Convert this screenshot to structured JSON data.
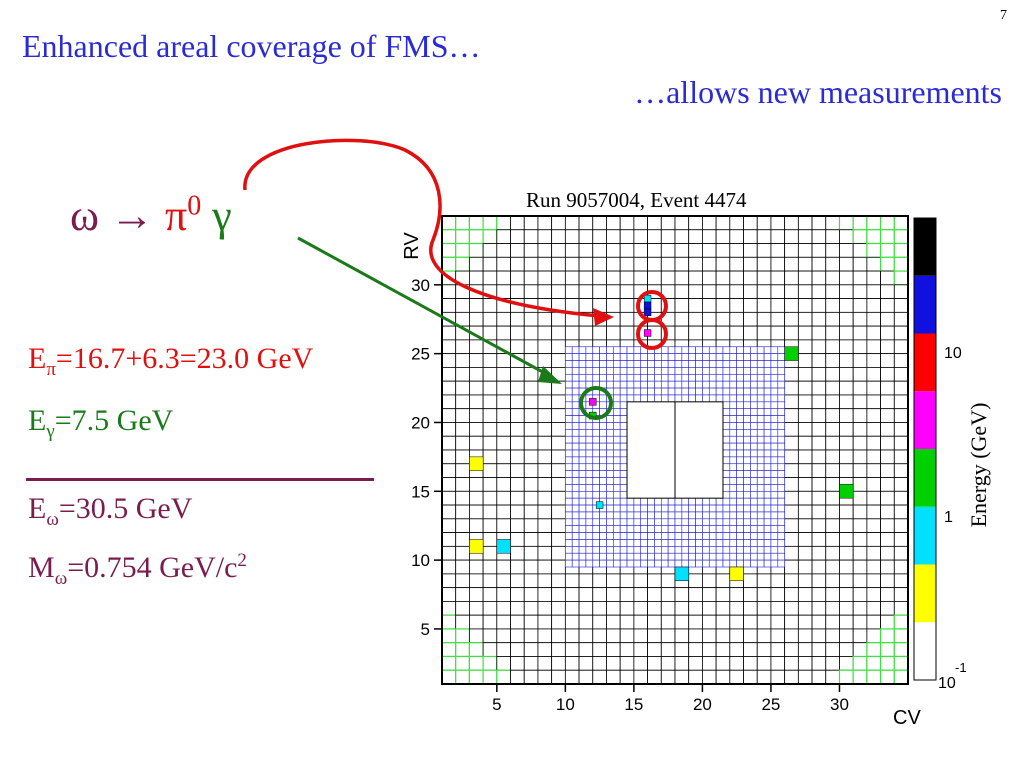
{
  "slide": {
    "page_number": "7",
    "title_line1": "Enhanced areal coverage of FMS…",
    "title_line2": "…allows new measurements"
  },
  "reaction": {
    "omega": "ω",
    "arrow": "→",
    "pi": "π",
    "pi_sup": "0",
    "gamma": "γ"
  },
  "energies": {
    "epi_E": "E",
    "epi_sub": "π",
    "epi_val": "=16.7+6.3=23.0 GeV",
    "eg_E": "E",
    "eg_sub": "γ",
    "eg_val": "=7.5 GeV",
    "eo_E": "E",
    "eo_sub": "ω",
    "eo_val": "=30.5 GeV",
    "mo_M": "M",
    "mo_sub": "ω",
    "mo_val": "=0.754 GeV/c",
    "mo_sup": "2"
  },
  "plot": {
    "title": "Run 9057004, Event 4474",
    "y_axis_label": "RV",
    "x_axis_label": "CV",
    "x_ticks": [
      "5",
      "10",
      "15",
      "20",
      "25",
      "30"
    ],
    "y_ticks": [
      "5",
      "10",
      "15",
      "20",
      "25",
      "30"
    ],
    "colorbar_label": "Energy (GeV)",
    "colorbar_tick_10_base": "10",
    "colorbar_tick_1": "1",
    "colorbar_tick_low_base": "10",
    "colorbar_tick_low_exp": "-1",
    "colors": {
      "large_cell_grid": "#000000",
      "small_cell_grid": "#2020d0",
      "edge_cells": "#40e040",
      "black": "#000000",
      "blue": "#1010e0",
      "red": "#ff0000",
      "magenta": "#ff00ff",
      "green": "#00d000",
      "cyan": "#00e0ff",
      "yellow": "#ffff00",
      "white": "#ffffff"
    },
    "hits": [
      {
        "cv": 3.5,
        "rv": 17,
        "color": "yellow",
        "size": "large"
      },
      {
        "cv": 3.5,
        "rv": 11,
        "color": "yellow",
        "size": "large"
      },
      {
        "cv": 5.5,
        "rv": 11,
        "color": "cyan",
        "size": "large"
      },
      {
        "cv": 18.5,
        "rv": 9,
        "color": "cyan",
        "size": "large"
      },
      {
        "cv": 22.5,
        "rv": 9,
        "color": "yellow",
        "size": "large"
      },
      {
        "cv": 26.5,
        "rv": 25,
        "color": "green",
        "size": "large"
      },
      {
        "cv": 30.5,
        "rv": 15,
        "color": "green",
        "size": "large"
      },
      {
        "cv": 16,
        "rv": 29,
        "color": "cyan",
        "size": "small"
      },
      {
        "cv": 16,
        "rv": 28.5,
        "color": "blue",
        "size": "small"
      },
      {
        "cv": 16,
        "rv": 28,
        "color": "blue",
        "size": "small"
      },
      {
        "cv": 16,
        "rv": 26.5,
        "color": "magenta",
        "size": "small"
      },
      {
        "cv": 12,
        "rv": 21.5,
        "color": "magenta",
        "size": "small"
      },
      {
        "cv": 12,
        "rv": 20.5,
        "color": "green",
        "size": "small"
      },
      {
        "cv": 12.5,
        "rv": 14,
        "color": "cyan",
        "size": "small"
      }
    ],
    "colorbar_bands": [
      "white",
      "yellow",
      "cyan",
      "green",
      "magenta",
      "red",
      "blue",
      "black"
    ]
  }
}
